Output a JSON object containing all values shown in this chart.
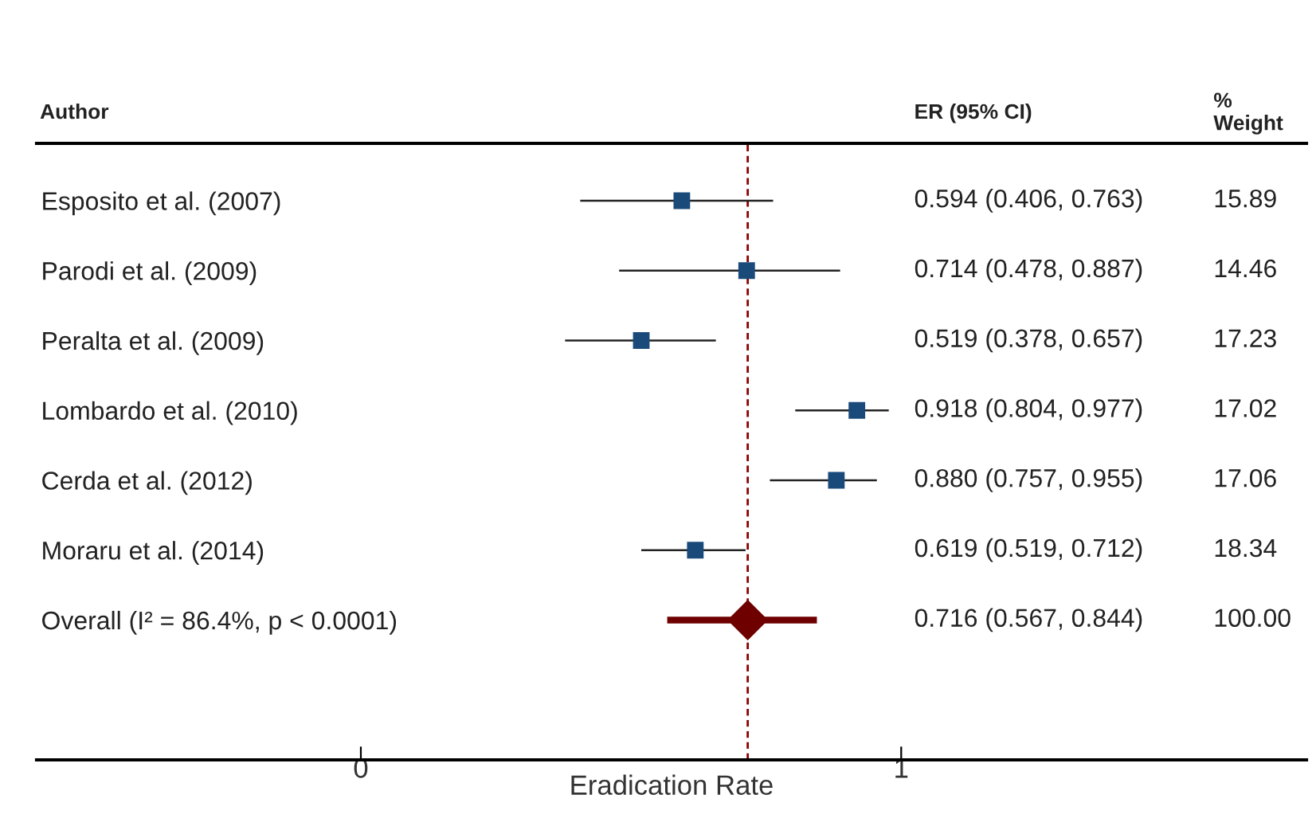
{
  "chart_data": {
    "type": "scatter",
    "orientation": "horizontal",
    "xlabel": "Eradication Rate",
    "categories": [
      "Esposito et al. (2007)",
      "Parodi et al. (2009)",
      "Peralta et al. (2009)",
      "Lombardo et al. (2010)",
      "Cerda et al. (2012)",
      "Moraru et al. (2014)",
      "Overall (I² = 86.4%, p < 0.0001)"
    ],
    "series": [
      {
        "color": "#1a4a7a",
        "marker": "square",
        "values": [
          0.594,
          0.714,
          0.519,
          0.918,
          0.88,
          0.619,
          null
        ],
        "errors": [
          [
            0.406,
            0.763
          ],
          [
            0.478,
            0.887
          ],
          [
            0.378,
            0.657
          ],
          [
            0.804,
            0.977
          ],
          [
            0.757,
            0.955
          ],
          [
            0.519,
            0.712
          ],
          null
        ]
      },
      {
        "color": "#6e0000",
        "marker": "diamond",
        "values": [
          null,
          null,
          null,
          null,
          null,
          null,
          0.716
        ],
        "errors": [
          null,
          null,
          null,
          null,
          null,
          null,
          [
            0.567,
            0.844
          ]
        ]
      }
    ],
    "xlim": [
      -0.6,
      1.75
    ],
    "xticks": [
      0,
      1
    ],
    "ref_lines": [
      {
        "axis": "x",
        "value": 0.716,
        "color": "#8b0000",
        "line_style": "dashed"
      }
    ],
    "annotations": [
      "Author",
      "ER (95% CI)",
      "%\nWeight",
      "0.594 (0.406, 0.763)",
      "0.714 (0.478, 0.887)",
      "0.519 (0.378, 0.657)",
      "0.918 (0.804, 0.977)",
      "0.880 (0.757, 0.955)",
      "0.619 (0.519, 0.712)",
      "0.716 (0.567, 0.844)",
      "15.89",
      "14.46",
      "17.23",
      "17.02",
      "17.06",
      "18.34",
      "100.00"
    ],
    "grid": false,
    "legend": false
  }
}
